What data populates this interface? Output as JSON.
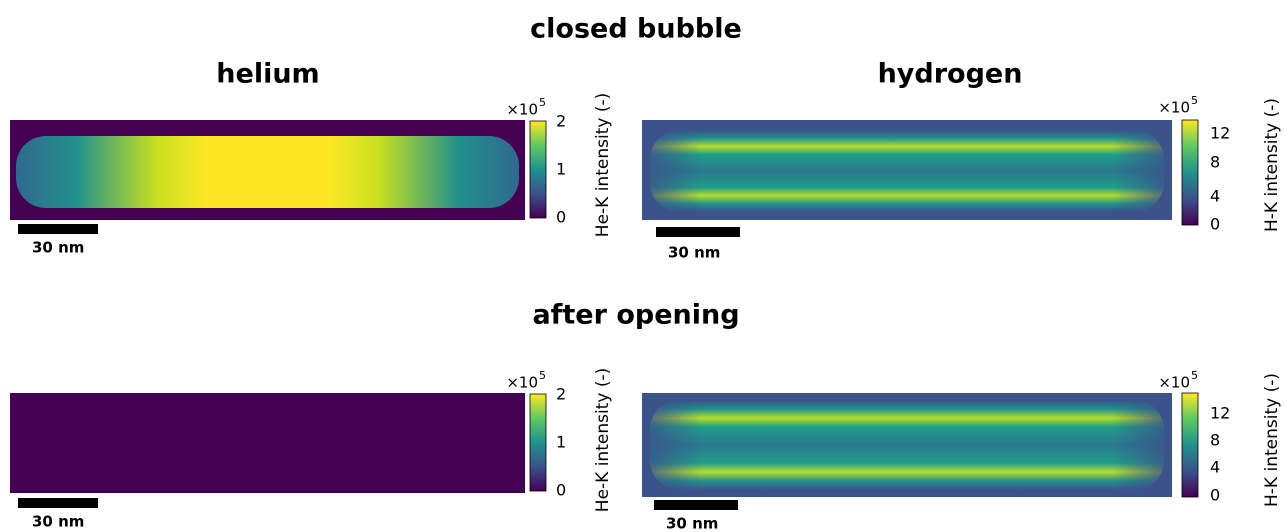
{
  "sections": [
    {
      "title": "closed bubble",
      "panels": [
        {
          "title": "helium",
          "scale_bar": "30 nm",
          "colorbar": {
            "label": "He-K intensity (-)",
            "multiplier": "×10",
            "exponent": "5",
            "ticks": [
              "0",
              "1",
              "2"
            ]
          }
        },
        {
          "title": "hydrogen",
          "scale_bar": "30 nm",
          "colorbar": {
            "label": "H-K intensity (-)",
            "multiplier": "×10",
            "exponent": "5",
            "ticks": [
              "0",
              "4",
              "8",
              "12"
            ]
          }
        }
      ]
    },
    {
      "title": "after opening",
      "panels": [
        {
          "scale_bar": "30 nm",
          "colorbar": {
            "label": "He-K intensity (-)",
            "multiplier": "×10",
            "exponent": "5",
            "ticks": [
              "0",
              "1",
              "2"
            ]
          }
        },
        {
          "scale_bar": "30 nm",
          "colorbar": {
            "label": "H-K intensity (-)",
            "multiplier": "×10",
            "exponent": "5",
            "ticks": [
              "0",
              "4",
              "8",
              "12"
            ]
          }
        }
      ]
    }
  ]
}
